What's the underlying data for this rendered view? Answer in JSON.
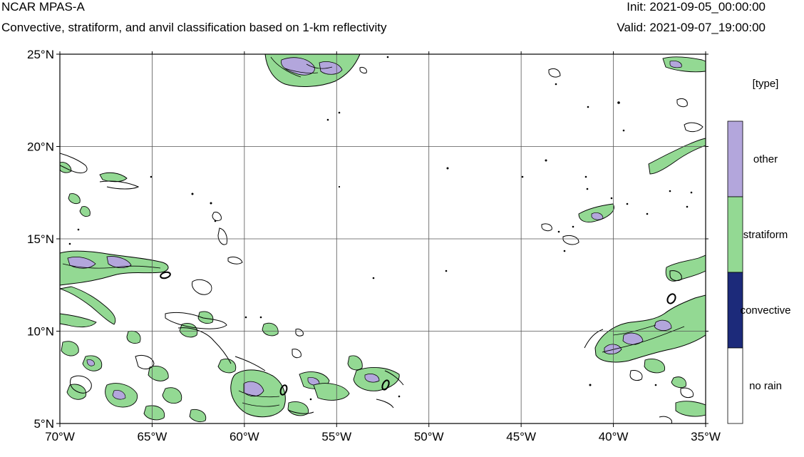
{
  "header": {
    "model": "NCAR MPAS-A",
    "description": "Convective, stratiform, and anvil classification based on 1-km reflectivity",
    "init": "Init: 2021-09-05_00:00:00",
    "valid": "Valid: 2021-09-07_19:00:00"
  },
  "map": {
    "lon_range": [
      -70,
      -35
    ],
    "lat_range": [
      5,
      25
    ],
    "x_ticks": [
      {
        "lon": -70,
        "label": "70°W"
      },
      {
        "lon": -65,
        "label": "65°W"
      },
      {
        "lon": -60,
        "label": "60°W"
      },
      {
        "lon": -55,
        "label": "55°W"
      },
      {
        "lon": -50,
        "label": "50°W"
      },
      {
        "lon": -45,
        "label": "45°W"
      },
      {
        "lon": -40,
        "label": "40°W"
      },
      {
        "lon": -35,
        "label": "35°W"
      }
    ],
    "y_ticks": [
      {
        "lat": 5,
        "label": "5°N"
      },
      {
        "lat": 10,
        "label": "10°N"
      },
      {
        "lat": 15,
        "label": "15°N"
      },
      {
        "lat": 20,
        "label": "20°N"
      },
      {
        "lat": 25,
        "label": "25°N"
      }
    ],
    "colors": {
      "other": "#b3a6dc",
      "stratiform": "#93d993",
      "convective": "#1c2a7a",
      "no_rain": "#ffffff"
    }
  },
  "legend": {
    "title": "[type]",
    "entries": [
      {
        "label": "other",
        "color": "#b3a6dc"
      },
      {
        "label": "stratiform",
        "color": "#93d993"
      },
      {
        "label": "convective",
        "color": "#1c2a7a"
      },
      {
        "label": "no rain",
        "color": "#ffffff"
      }
    ]
  }
}
